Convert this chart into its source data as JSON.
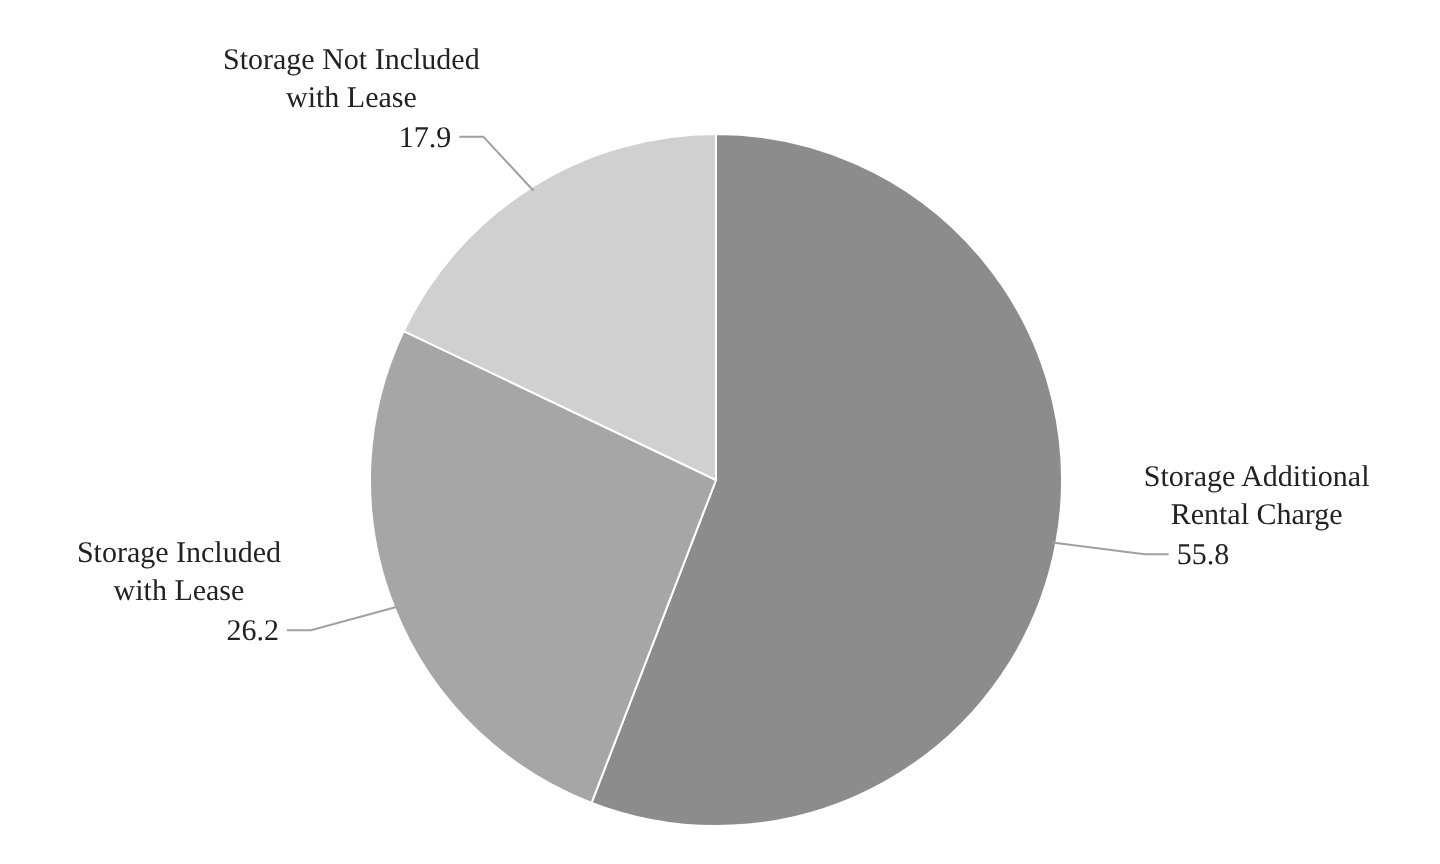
{
  "chart_data": {
    "type": "pie",
    "categories": [
      "Storage Additional Rental Charge",
      "Storage Included with Lease",
      "Storage Not Included with Lease"
    ],
    "values": [
      55.8,
      26.2,
      17.9
    ],
    "colors": [
      "#8c8c8c",
      "#a6a6a6",
      "#d0d0d0"
    ],
    "data_labels": true
  }
}
